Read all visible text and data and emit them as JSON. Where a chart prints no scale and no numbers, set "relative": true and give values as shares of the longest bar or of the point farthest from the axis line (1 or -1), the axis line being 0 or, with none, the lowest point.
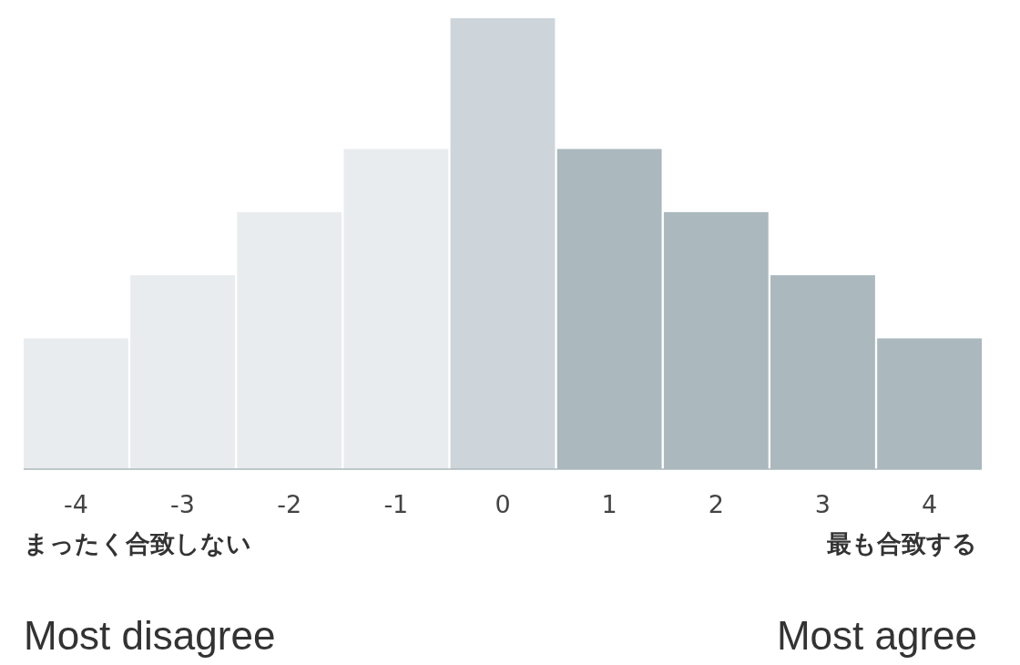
{
  "chart_data": {
    "type": "bar",
    "relative": true,
    "categories": [
      "-4",
      "-3",
      "-2",
      "-1",
      "0",
      "1",
      "2",
      "3",
      "4"
    ],
    "values": [
      0.29,
      0.43,
      0.57,
      0.71,
      1,
      0.71,
      0.57,
      0.43,
      0.29
    ],
    "colors": [
      "#e9ecef",
      "#e9ecef",
      "#e9ecef",
      "#e9ecef",
      "#cdd5db",
      "#abb8bd",
      "#abb8bd",
      "#abb8bd",
      "#abb8bd"
    ],
    "annotations": [
      "まったく合致しない",
      "最も合致する",
      "Most disagree",
      "Most agree"
    ]
  }
}
